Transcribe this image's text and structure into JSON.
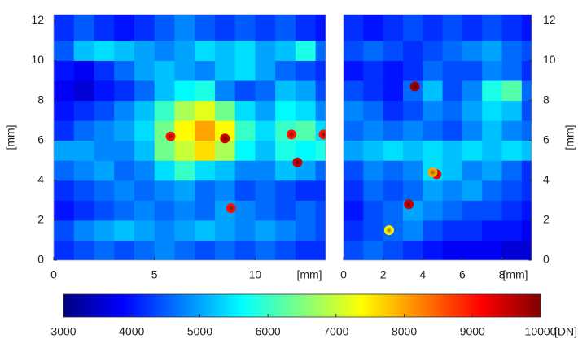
{
  "chart_data": [
    {
      "type": "heatmap",
      "colormap": "jet",
      "clim": [
        3000,
        10000
      ],
      "xlim": [
        0,
        13.5
      ],
      "ylim": [
        0,
        12.3
      ],
      "xticks": [
        0,
        5,
        10
      ],
      "yticks": [
        0,
        2,
        4,
        6,
        8,
        10,
        12
      ],
      "x_label": "[mm]",
      "y_label": "[mm]",
      "y_axis_side": "left",
      "x_bins": [
        0,
        1,
        2,
        3,
        4,
        5,
        6,
        7,
        8,
        9,
        10,
        11,
        12,
        13,
        13.5
      ],
      "y_bins": [
        0,
        1,
        2,
        3,
        4,
        5,
        6,
        7,
        8,
        9,
        10,
        11,
        12.3
      ],
      "values": [
        [
          4200,
          4400,
          4600,
          4400,
          4600,
          4800,
          4600,
          4400,
          4600,
          4400,
          4600,
          4400,
          4200,
          4200
        ],
        [
          4400,
          4800,
          5000,
          5200,
          5000,
          4800,
          5000,
          5200,
          5000,
          4800,
          5000,
          4800,
          4600,
          4400
        ],
        [
          4000,
          4200,
          4400,
          4600,
          4800,
          4600,
          4800,
          4600,
          5000,
          4800,
          4600,
          4400,
          4600,
          4400
        ],
        [
          4200,
          4400,
          4600,
          4800,
          4600,
          4800,
          5000,
          4600,
          4800,
          4400,
          4600,
          4400,
          4200,
          4200
        ],
        [
          4600,
          4800,
          5000,
          4600,
          4800,
          5400,
          6000,
          5400,
          5200,
          4800,
          4800,
          5200,
          5000,
          4600
        ],
        [
          5000,
          5000,
          4800,
          4800,
          5200,
          6400,
          7000,
          7600,
          6800,
          5600,
          5200,
          5800,
          5600,
          5800
        ],
        [
          4200,
          4600,
          4800,
          5000,
          5400,
          6400,
          7400,
          8000,
          7400,
          6000,
          5400,
          6000,
          6200,
          5400
        ],
        [
          4000,
          4200,
          4400,
          4800,
          5200,
          6000,
          6800,
          7200,
          6400,
          5400,
          5000,
          5600,
          5400,
          4800
        ],
        [
          3800,
          3600,
          4000,
          4200,
          4600,
          5200,
          5600,
          5800,
          4800,
          4400,
          4600,
          5200,
          5000,
          4400
        ],
        [
          4000,
          3800,
          4200,
          4600,
          5000,
          5200,
          5000,
          4800,
          5200,
          5400,
          5000,
          4600,
          4400,
          4200
        ],
        [
          4500,
          5200,
          5400,
          5200,
          5000,
          4800,
          5000,
          5400,
          5200,
          5400,
          5000,
          5200,
          5800,
          4600
        ],
        [
          4200,
          4500,
          4200,
          4000,
          4200,
          4500,
          4800,
          4500,
          4300,
          4500,
          4300,
          4500,
          4200,
          4000
        ]
      ],
      "hotspots": {
        "x": [
          5.8,
          8.5,
          11.8,
          12.1,
          8.8,
          13.4
        ],
        "y": [
          6.2,
          6.1,
          6.3,
          4.9,
          2.6,
          6.3
        ],
        "values": [
          9000,
          9500,
          9000,
          9500,
          9000,
          9000
        ]
      }
    },
    {
      "type": "heatmap",
      "colormap": "jet",
      "clim": [
        3000,
        10000
      ],
      "xlim": [
        0,
        9.5
      ],
      "ylim": [
        0,
        12.3
      ],
      "xticks": [
        0,
        2,
        4,
        6,
        8
      ],
      "yticks": [
        0,
        2,
        4,
        6,
        8,
        10,
        12
      ],
      "x_label": "[mm]",
      "y_label": "[mm]",
      "y_axis_side": "right",
      "x_bins": [
        0,
        1,
        2,
        3,
        4,
        5,
        6,
        7,
        8,
        9,
        9.5
      ],
      "y_bins": [
        0,
        1,
        2,
        3,
        4,
        5,
        6,
        7,
        8,
        9,
        10,
        11,
        12.3
      ],
      "values": [
        [
          4400,
          4600,
          4400,
          4200,
          4000,
          3800,
          3800,
          3800,
          3600,
          3600
        ],
        [
          4200,
          4400,
          4600,
          4800,
          4400,
          4200,
          4200,
          4000,
          4000,
          3800
        ],
        [
          4000,
          4400,
          4600,
          5000,
          4800,
          4600,
          4400,
          4400,
          4200,
          4000
        ],
        [
          4200,
          4600,
          4400,
          4600,
          5000,
          4800,
          5000,
          4600,
          4400,
          4200
        ],
        [
          4400,
          4800,
          4600,
          4800,
          5400,
          5200,
          4800,
          5000,
          4600,
          4200
        ],
        [
          5000,
          5200,
          5400,
          5200,
          5400,
          5200,
          5400,
          5200,
          5400,
          5200
        ],
        [
          4600,
          4800,
          4600,
          4800,
          4600,
          4400,
          4800,
          5200,
          4800,
          4600
        ],
        [
          4800,
          4600,
          4200,
          4400,
          4800,
          4600,
          5000,
          5400,
          5200,
          4400
        ],
        [
          4400,
          4200,
          4000,
          4600,
          5200,
          4400,
          4800,
          5800,
          6200,
          4600
        ],
        [
          4000,
          4200,
          4000,
          4200,
          4600,
          4400,
          4400,
          4800,
          4600,
          4200
        ],
        [
          4400,
          4600,
          4400,
          4200,
          4400,
          4600,
          4800,
          5000,
          4600,
          4400
        ],
        [
          4200,
          4000,
          4200,
          4400,
          4200,
          4400,
          4200,
          4400,
          4200,
          4000
        ]
      ],
      "hotspots": {
        "x": [
          3.6,
          4.7,
          3.3,
          2.3,
          4.5
        ],
        "y": [
          8.7,
          4.3,
          2.8,
          1.5,
          4.4
        ],
        "values": [
          9800,
          9200,
          9500,
          7500,
          8000
        ]
      }
    },
    {
      "type": "colorbar",
      "colormap": "jet",
      "xlim": [
        3000,
        10000
      ],
      "xticks": [
        3000,
        4000,
        5000,
        6000,
        7000,
        8000,
        9000,
        10000
      ],
      "label": "[DN]"
    }
  ]
}
